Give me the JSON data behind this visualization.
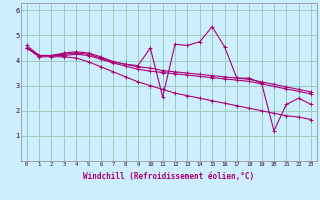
{
  "xlabel": "Windchill (Refroidissement éolien,°C)",
  "background_color": "#cceeff",
  "grid_color": "#99ccbb",
  "line_color": "#aa0077",
  "xlim": [
    -0.5,
    23.5
  ],
  "ylim": [
    0,
    6.3
  ],
  "xticks": [
    0,
    1,
    2,
    3,
    4,
    5,
    6,
    7,
    8,
    9,
    10,
    11,
    12,
    13,
    14,
    15,
    16,
    17,
    18,
    19,
    20,
    21,
    22,
    23
  ],
  "yticks": [
    1,
    2,
    3,
    4,
    5,
    6
  ],
  "lines": [
    [
      4.6,
      4.2,
      4.2,
      4.3,
      4.35,
      4.3,
      4.15,
      3.95,
      3.85,
      3.8,
      4.5,
      2.55,
      4.65,
      4.6,
      4.75,
      5.35,
      4.55,
      3.3,
      3.3,
      3.1,
      1.2,
      2.25,
      2.5,
      2.25
    ],
    [
      4.5,
      4.2,
      4.2,
      4.25,
      4.3,
      4.25,
      4.1,
      3.95,
      3.85,
      3.75,
      3.7,
      3.6,
      3.55,
      3.5,
      3.45,
      3.4,
      3.35,
      3.3,
      3.25,
      3.15,
      3.05,
      2.95,
      2.85,
      2.75
    ],
    [
      4.5,
      4.2,
      4.2,
      4.2,
      4.25,
      4.2,
      4.05,
      3.9,
      3.78,
      3.65,
      3.58,
      3.52,
      3.47,
      3.42,
      3.37,
      3.32,
      3.27,
      3.22,
      3.17,
      3.07,
      2.97,
      2.87,
      2.77,
      2.67
    ],
    [
      4.5,
      4.15,
      4.15,
      4.15,
      4.1,
      3.95,
      3.75,
      3.55,
      3.35,
      3.15,
      3.0,
      2.85,
      2.7,
      2.6,
      2.5,
      2.4,
      2.3,
      2.2,
      2.1,
      2.0,
      1.9,
      1.8,
      1.75,
      1.65
    ]
  ],
  "markers": [
    "+",
    "+",
    "+",
    "+"
  ],
  "marker_size": [
    3.5,
    3.5,
    3.5,
    3.5
  ],
  "linewidths": [
    0.8,
    0.8,
    0.8,
    0.8
  ]
}
